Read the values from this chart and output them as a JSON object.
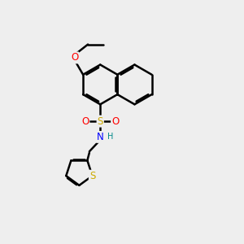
{
  "bg_color": "#eeeeee",
  "bond_color": "#000000",
  "bond_width": 1.8,
  "atom_colors": {
    "O": "#ff0000",
    "S": "#ccaa00",
    "N": "#0000ff",
    "H": "#008888",
    "C": "#000000"
  },
  "font_size_atom": 8.5,
  "font_size_h": 7.0
}
